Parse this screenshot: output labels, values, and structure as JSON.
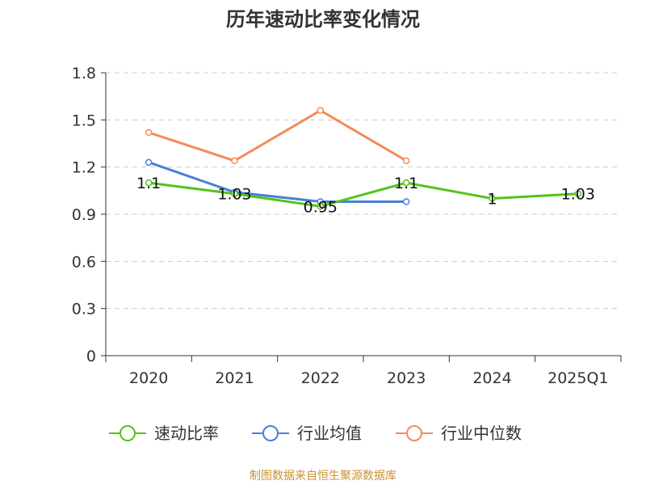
{
  "chart_data": {
    "type": "line",
    "title": "历年速动比率变化情况",
    "categories": [
      "2020",
      "2021",
      "2022",
      "2023",
      "2024",
      "2025Q1"
    ],
    "ylim": [
      0,
      1.8
    ],
    "yticks": [
      "0",
      "0.3",
      "0.6",
      "0.9",
      "1.2",
      "1.5",
      "1.8"
    ],
    "grid": true,
    "legend_position": "bottom",
    "series": [
      {
        "name": "速动比率",
        "color": "#52c41a",
        "values": [
          1.1,
          1.03,
          0.95,
          1.1,
          1.0,
          1.03
        ],
        "labels": [
          "1.1",
          "1.03",
          "0.95",
          "1.1",
          "1",
          "1.03"
        ]
      },
      {
        "name": "行业均值",
        "color": "#4a7fdb",
        "values": [
          1.23,
          1.04,
          0.98,
          0.98,
          null,
          null
        ]
      },
      {
        "name": "行业中位数",
        "color": "#f48b57",
        "values": [
          1.42,
          1.24,
          1.56,
          1.24,
          null,
          null
        ]
      }
    ],
    "source": "制图数据来自恒生聚源数据库"
  }
}
